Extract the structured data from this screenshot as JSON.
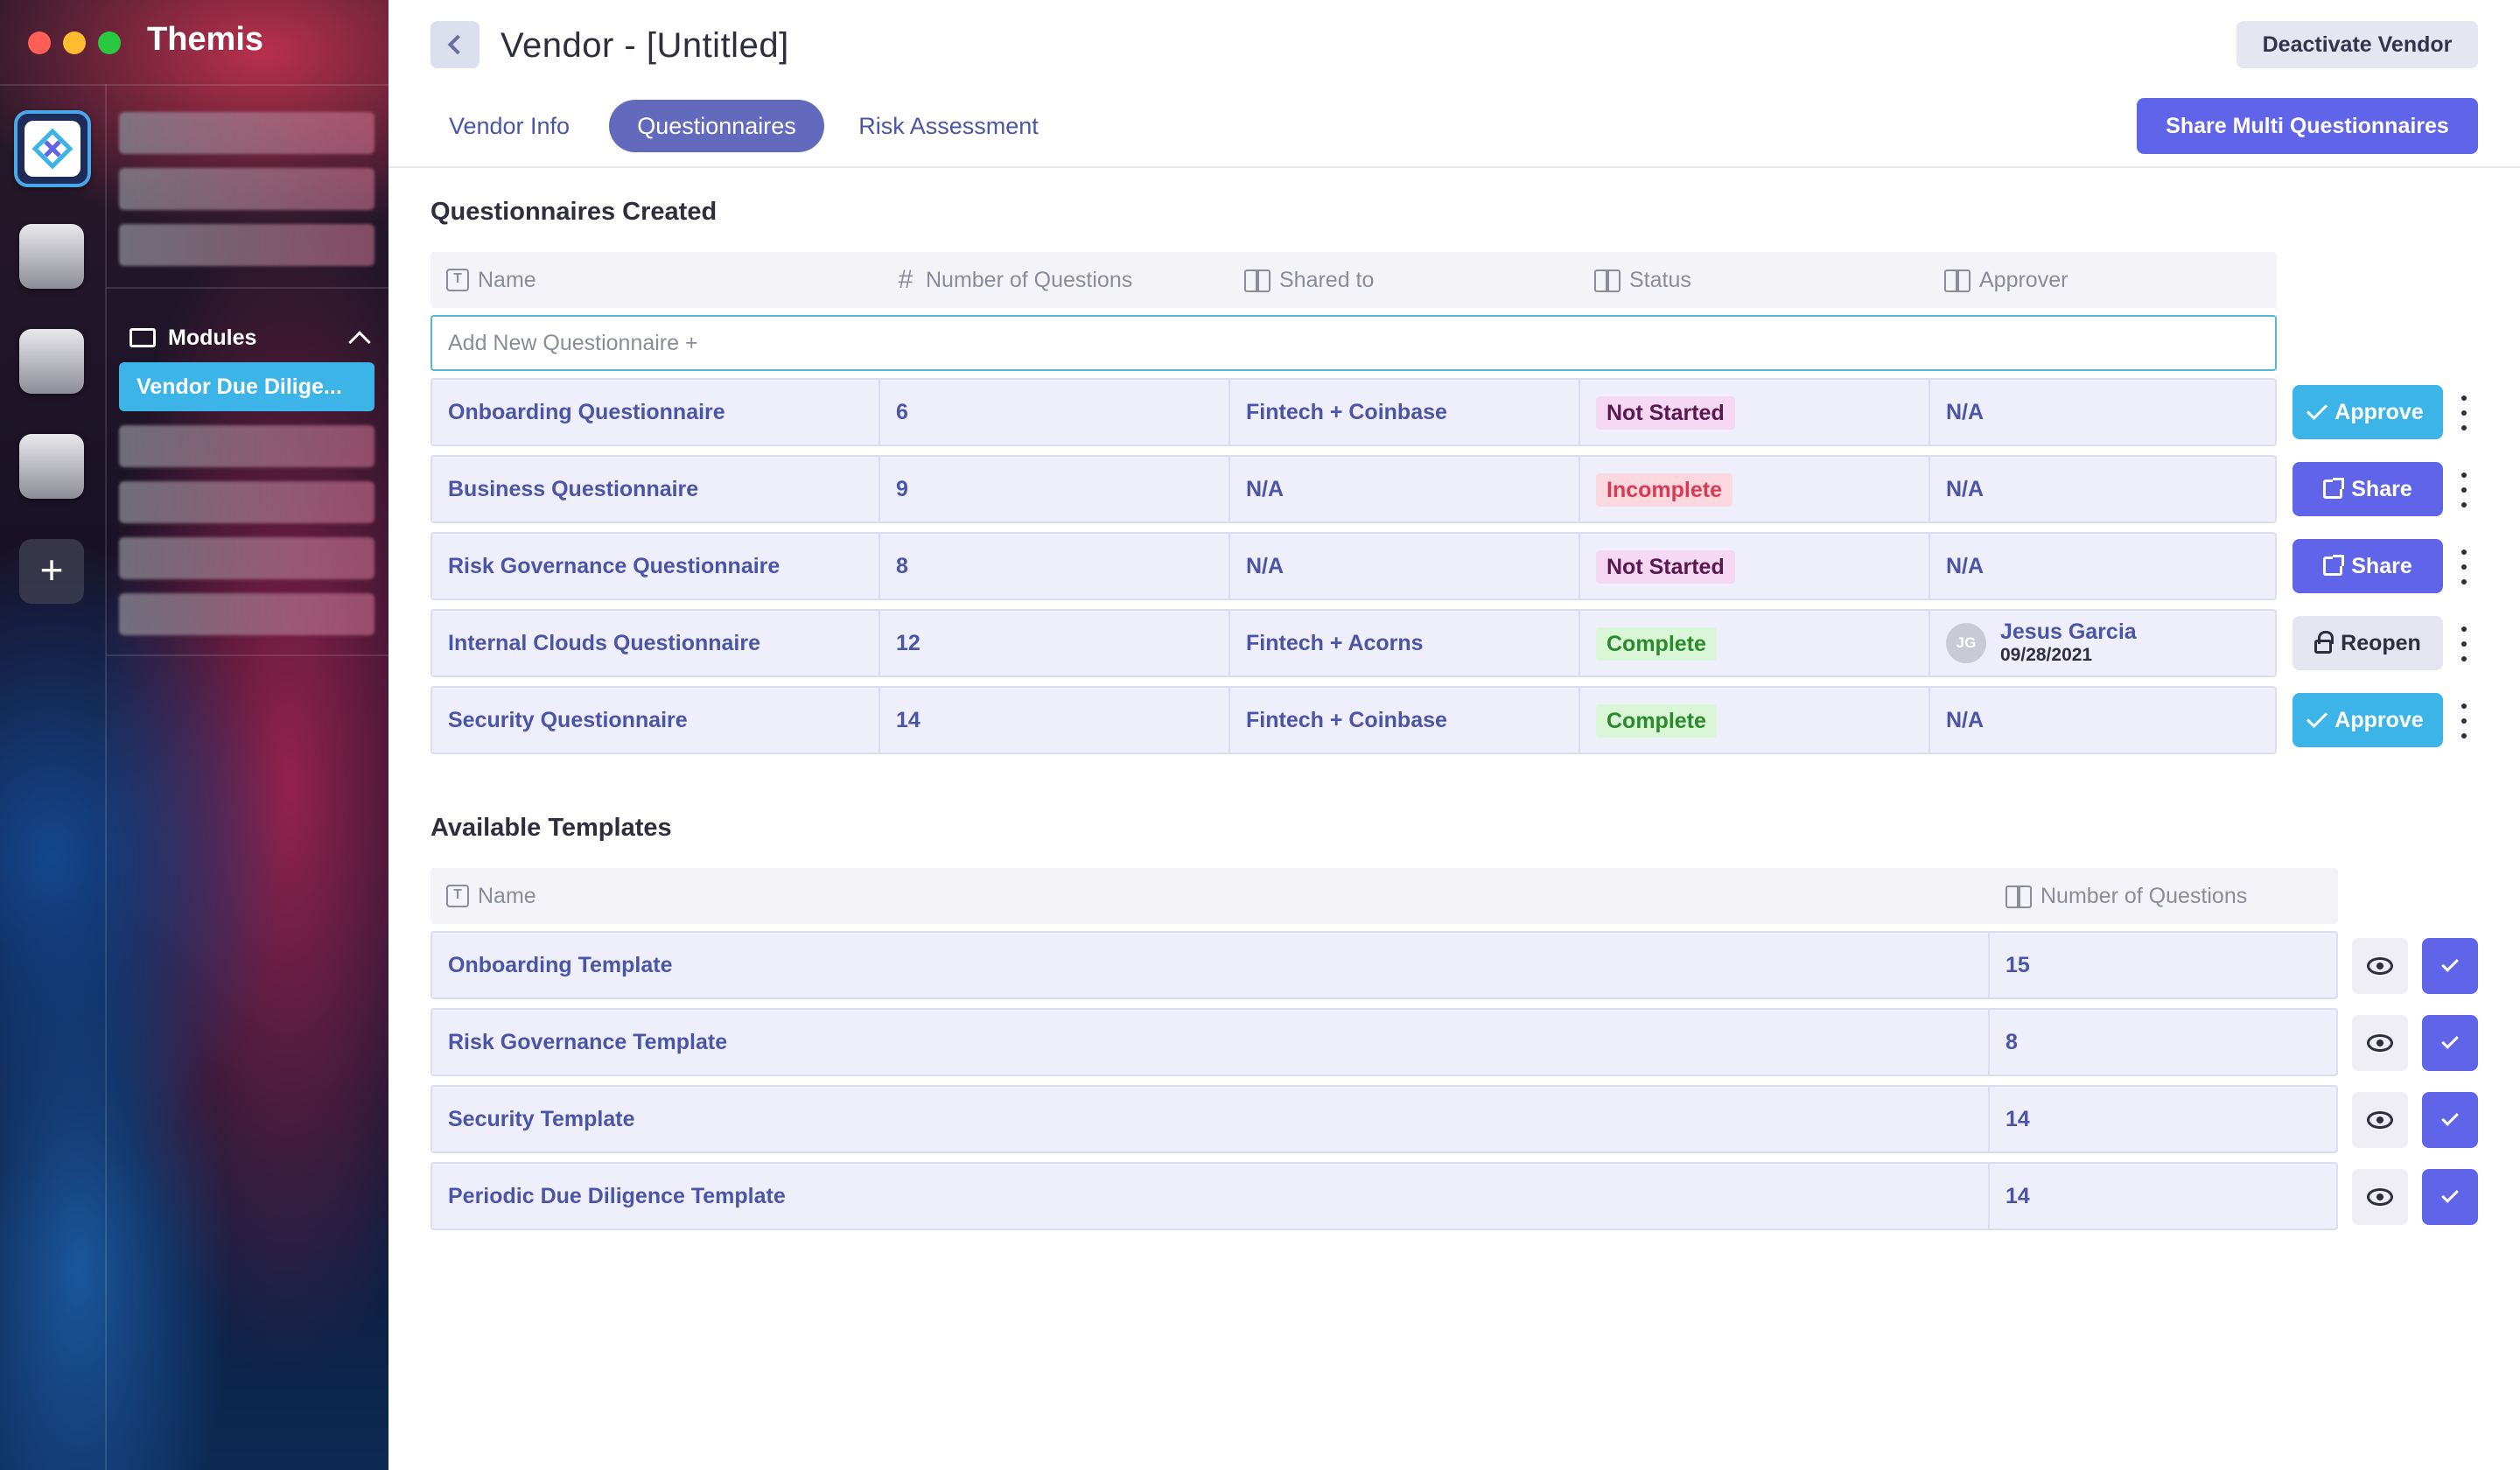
{
  "app": {
    "title": "Themis"
  },
  "sidebar": {
    "modules_label": "Modules",
    "active_module": "Vendor Due Dilige..."
  },
  "header": {
    "title": "Vendor - [Untitled]",
    "deactivate_label": "Deactivate Vendor",
    "share_multi_label": "Share Multi Questionnaires"
  },
  "tabs": [
    {
      "label": "Vendor Info"
    },
    {
      "label": "Questionnaires"
    },
    {
      "label": "Risk Assessment"
    }
  ],
  "questionnaires": {
    "title": "Questionnaires Created",
    "columns": [
      "Name",
      "Number of Questions",
      "Shared to",
      "Status",
      "Approver"
    ],
    "add_new_label": "Add New Questionnaire +",
    "rows": [
      {
        "name": "Onboarding Questionnaire",
        "questions": "6",
        "shared_to": "Fintech + Coinbase",
        "status": "Not Started",
        "approver": "N/A",
        "action": "Approve"
      },
      {
        "name": "Business Questionnaire",
        "questions": "9",
        "shared_to": "N/A",
        "status": "Incomplete",
        "approver": "N/A",
        "action": "Share"
      },
      {
        "name": "Risk Governance Questionnaire",
        "questions": "8",
        "shared_to": "N/A",
        "status": "Not Started",
        "approver": "N/A",
        "action": "Share"
      },
      {
        "name": "Internal Clouds Questionnaire",
        "questions": "12",
        "shared_to": "Fintech + Acorns",
        "status": "Complete",
        "approver_initials": "JG",
        "approver_name": "Jesus Garcia",
        "approver_date": "09/28/2021",
        "action": "Reopen"
      },
      {
        "name": "Security Questionnaire",
        "questions": "14",
        "shared_to": "Fintech + Coinbase",
        "status": "Complete",
        "approver": "N/A",
        "action": "Approve"
      }
    ]
  },
  "templates": {
    "title": "Available Templates",
    "columns": [
      "Name",
      "Number of Questions"
    ],
    "rows": [
      {
        "name": "Onboarding Template",
        "questions": "15"
      },
      {
        "name": "Risk Governance Template",
        "questions": "8"
      },
      {
        "name": "Security Template",
        "questions": "14"
      },
      {
        "name": "Periodic Due Diligence Template",
        "questions": "14"
      }
    ]
  },
  "colors": {
    "accent": "#6064e8",
    "approve": "#3db4e8",
    "tab_active": "#6369bd",
    "link_text": "#4b55a8"
  }
}
